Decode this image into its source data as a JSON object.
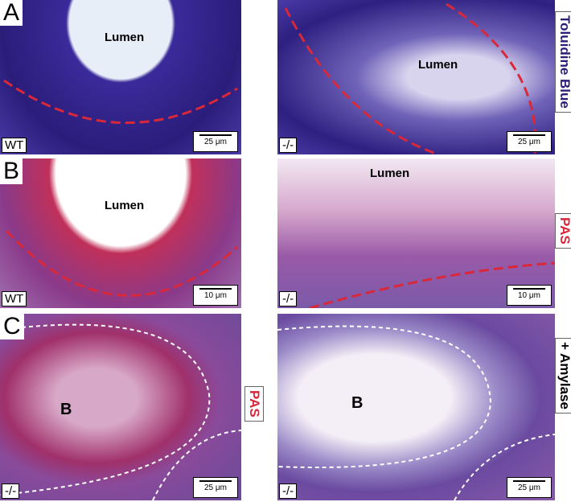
{
  "rows": [
    {
      "letter": "A",
      "images": [
        {
          "center_label": "Lumen",
          "genotype": "WT",
          "scale_bar": "25 μm"
        },
        {
          "center_label": "Lumen",
          "genotype": "-/-",
          "scale_bar": "25 μm",
          "side_label": "Toluidine Blue"
        }
      ]
    },
    {
      "letter": "B",
      "images": [
        {
          "center_label": "Lumen",
          "genotype": "WT",
          "scale_bar": "10 μm"
        },
        {
          "center_label": "Lumen",
          "genotype": "-/-",
          "scale_bar": "10 μm",
          "side_label": "PAS"
        }
      ]
    },
    {
      "letter": "C",
      "images": [
        {
          "center_label": "B",
          "genotype": "-/-",
          "scale_bar": "25 μm",
          "side_label": "PAS"
        },
        {
          "center_label": "B",
          "genotype": "-/-",
          "scale_bar": "25 μm",
          "side_label": "+ Amylase"
        }
      ]
    }
  ]
}
